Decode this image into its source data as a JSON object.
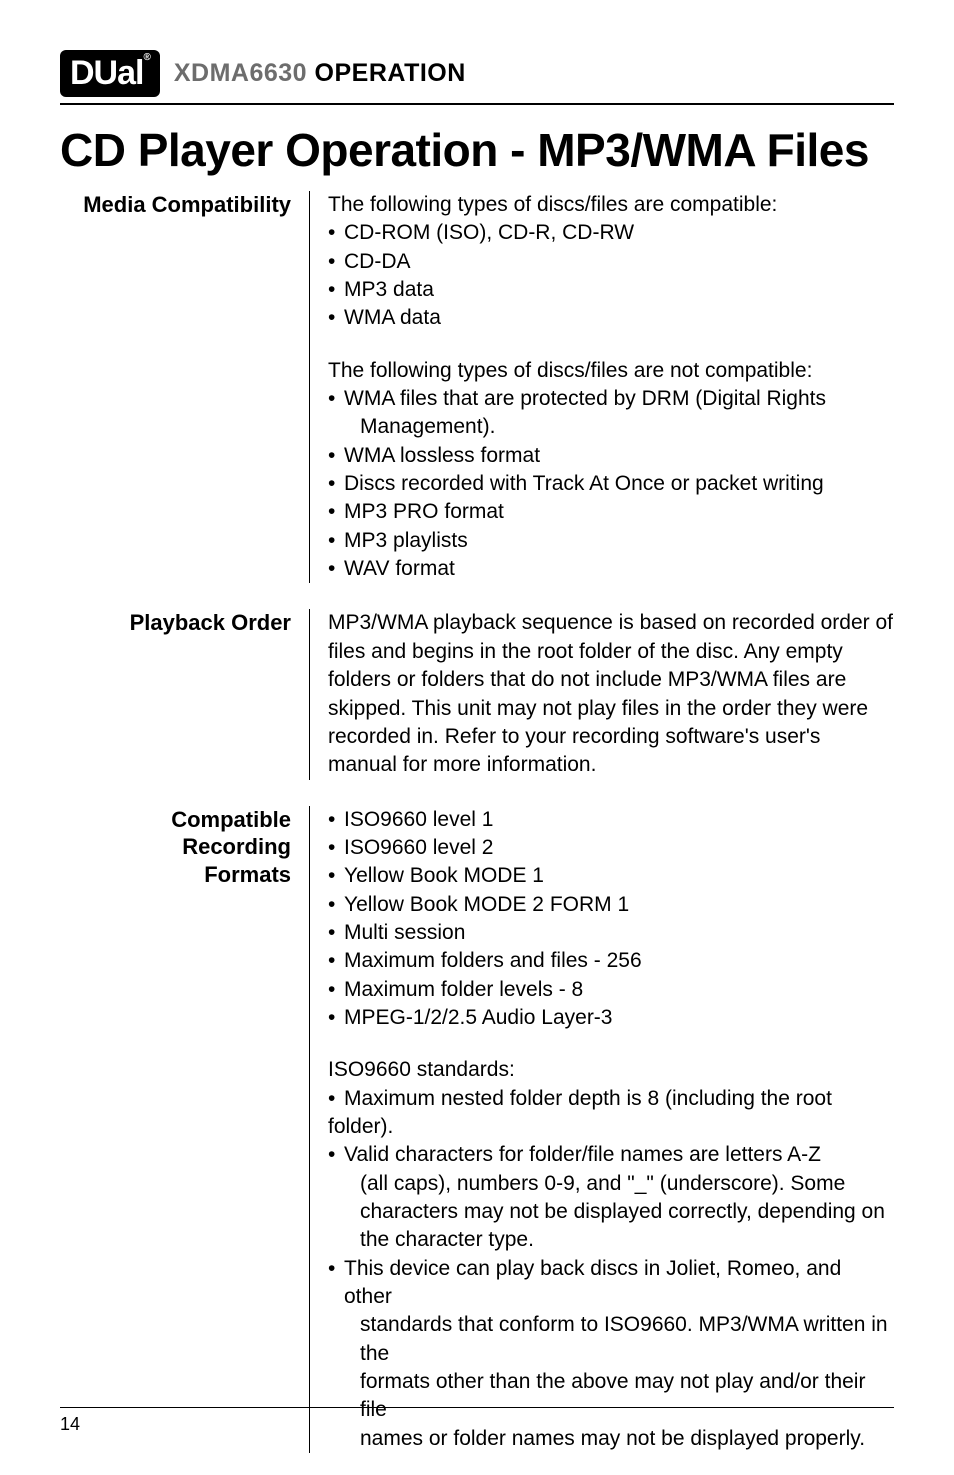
{
  "header": {
    "logo_text": "DUal",
    "logo_reg": "®",
    "model": "XDMA6630",
    "operation": " OPERATION"
  },
  "title": "CD Player Operation - MP3/WMA Files",
  "sections": {
    "media": {
      "label": "Media Compatibility",
      "intro1": "The following types of discs/files are compatible:",
      "list1": [
        "CD-ROM (ISO), CD-R, CD-RW",
        "CD-DA",
        "MP3 data",
        "WMA data"
      ],
      "intro2": "The following types of discs/files are not compatible:",
      "list2": [
        "WMA files that are protected by DRM (Digital Rights",
        "WMA lossless format",
        "Discs recorded with Track At Once or packet writing",
        "MP3 PRO format",
        "MP3 playlists",
        "WAV format"
      ],
      "list2_cont": "Management)."
    },
    "playback": {
      "label": "Playback Order",
      "body": "MP3/WMA playback sequence is based on recorded order of files and begins in the root folder of the disc. Any empty folders or folders that do not include MP3/WMA files are skipped. This unit may not play files in the order they were recorded in. Refer to your recording software's user's manual for more information."
    },
    "formats": {
      "label_line1": "Compatible Recording",
      "label_line2": "Formats",
      "list1": [
        "ISO9660 level 1",
        "ISO9660 level 2",
        "Yellow Book MODE 1",
        "Yellow Book MODE 2 FORM 1",
        "Multi session",
        "Maximum folders and files - 256",
        "Maximum folder levels - 8",
        "MPEG-1/2/2.5 Audio Layer-3"
      ],
      "intro2": "ISO9660 standards:",
      "b2_0": "Maximum nested folder depth is 8 (including the root",
      "b2_0_cont": "folder).",
      "b2_1": "Valid characters for folder/file names are letters A-Z",
      "b2_1_cont": [
        "(all caps), numbers 0-9, and \"_\" (underscore). Some",
        "characters may not be displayed correctly, depending on",
        "the character type."
      ],
      "b2_2": "This device can play back discs in Joliet, Romeo, and other",
      "b2_2_cont": [
        "standards that conform to ISO9660. MP3/WMA written in the",
        "formats other than the above may not play and/or their file",
        "names or folder names may not be displayed properly."
      ]
    }
  },
  "footer": {
    "page": "14"
  },
  "style": {
    "page_bg": "#ffffff",
    "text_color": "#000000",
    "model_gray": "#6d6d6d",
    "rule_color": "#000000",
    "title_fontsize": 46,
    "label_fontsize": 22,
    "body_fontsize": 21
  }
}
